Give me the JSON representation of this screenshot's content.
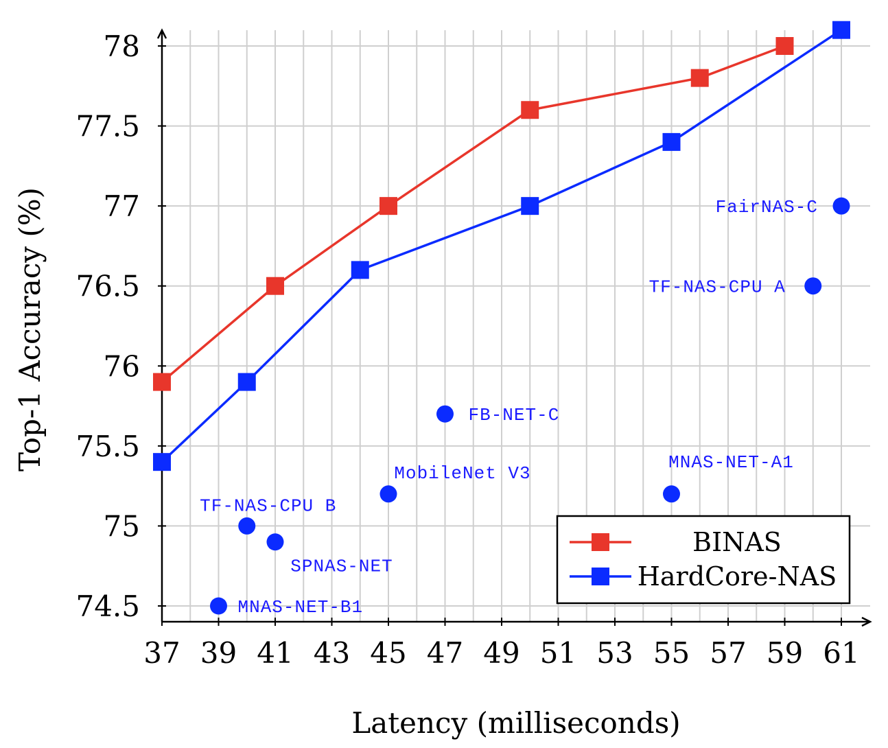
{
  "chart_data": {
    "type": "line",
    "xlabel": "Latency (milliseconds)",
    "ylabel": "Top-1 Accuracy (%)",
    "xlim": [
      37,
      62
    ],
    "ylim": [
      74.4,
      78.1
    ],
    "x_ticks": [
      37,
      39,
      41,
      43,
      45,
      47,
      49,
      51,
      53,
      55,
      57,
      59,
      61
    ],
    "y_ticks": [
      74.5,
      75,
      75.5,
      76,
      76.5,
      77,
      77.5,
      78
    ],
    "grid": true,
    "legend_position": "bottom-right",
    "series": [
      {
        "name": "BINAS",
        "color": "#e8362b",
        "marker": "square",
        "x": [
          37,
          41,
          45,
          50,
          56,
          59
        ],
        "y": [
          75.9,
          76.5,
          77.0,
          77.6,
          77.8,
          78.0
        ]
      },
      {
        "name": "HardCore-NAS",
        "color": "#0b2bff",
        "marker": "square",
        "x": [
          37,
          40,
          44,
          50,
          55,
          61
        ],
        "y": [
          75.4,
          75.9,
          76.6,
          77.0,
          77.4,
          78.1
        ]
      }
    ],
    "points": {
      "color": "#0b2bff",
      "marker": "circle",
      "items": [
        {
          "label": "FairNAS-C",
          "x": 61,
          "y": 77.0
        },
        {
          "label": "TF-NAS-CPU A",
          "x": 60,
          "y": 76.5
        },
        {
          "label": "FB-NET-C",
          "x": 47,
          "y": 75.7
        },
        {
          "label": "MobileNet V3",
          "x": 45,
          "y": 75.2
        },
        {
          "label": "MNAS-NET-A1",
          "x": 55,
          "y": 75.2
        },
        {
          "label": "TF-NAS-CPU B",
          "x": 40,
          "y": 75.0
        },
        {
          "label": "SPNAS-NET",
          "x": 41,
          "y": 74.9
        },
        {
          "label": "MNAS-NET-B1",
          "x": 39,
          "y": 74.5
        }
      ]
    }
  }
}
